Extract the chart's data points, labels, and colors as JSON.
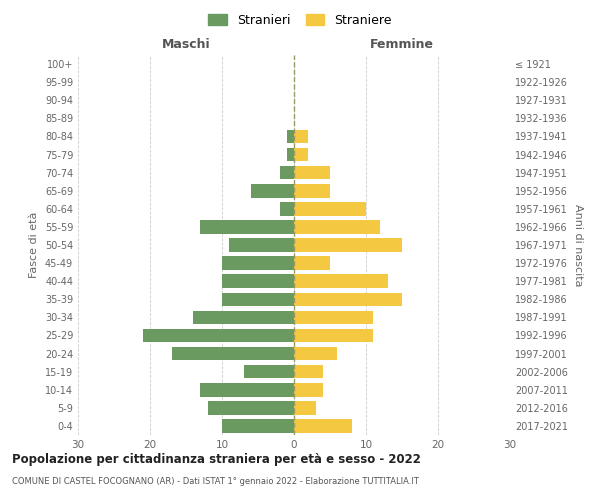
{
  "age_groups": [
    "0-4",
    "5-9",
    "10-14",
    "15-19",
    "20-24",
    "25-29",
    "30-34",
    "35-39",
    "40-44",
    "45-49",
    "50-54",
    "55-59",
    "60-64",
    "65-69",
    "70-74",
    "75-79",
    "80-84",
    "85-89",
    "90-94",
    "95-99",
    "100+"
  ],
  "birth_years": [
    "2017-2021",
    "2012-2016",
    "2007-2011",
    "2002-2006",
    "1997-2001",
    "1992-1996",
    "1987-1991",
    "1982-1986",
    "1977-1981",
    "1972-1976",
    "1967-1971",
    "1962-1966",
    "1957-1961",
    "1952-1956",
    "1947-1951",
    "1942-1946",
    "1937-1941",
    "1932-1936",
    "1927-1931",
    "1922-1926",
    "≤ 1921"
  ],
  "males": [
    10,
    12,
    13,
    7,
    17,
    21,
    14,
    10,
    10,
    10,
    9,
    13,
    2,
    6,
    2,
    1,
    1,
    0,
    0,
    0,
    0
  ],
  "females": [
    8,
    3,
    4,
    4,
    6,
    11,
    11,
    15,
    13,
    5,
    15,
    12,
    10,
    5,
    5,
    2,
    2,
    0,
    0,
    0,
    0
  ],
  "male_color": "#6a9a5f",
  "female_color": "#f5c842",
  "background_color": "#ffffff",
  "grid_color": "#cccccc",
  "title": "Popolazione per cittadinanza straniera per età e sesso - 2022",
  "subtitle": "COMUNE DI CASTEL FOCOGNANO (AR) - Dati ISTAT 1° gennaio 2022 - Elaborazione TUTTITALIA.IT",
  "xlabel_left": "Maschi",
  "xlabel_right": "Femmine",
  "ylabel_left": "Fasce di età",
  "ylabel_right": "Anni di nascita",
  "legend_males": "Stranieri",
  "legend_females": "Straniere",
  "xlim": 30
}
